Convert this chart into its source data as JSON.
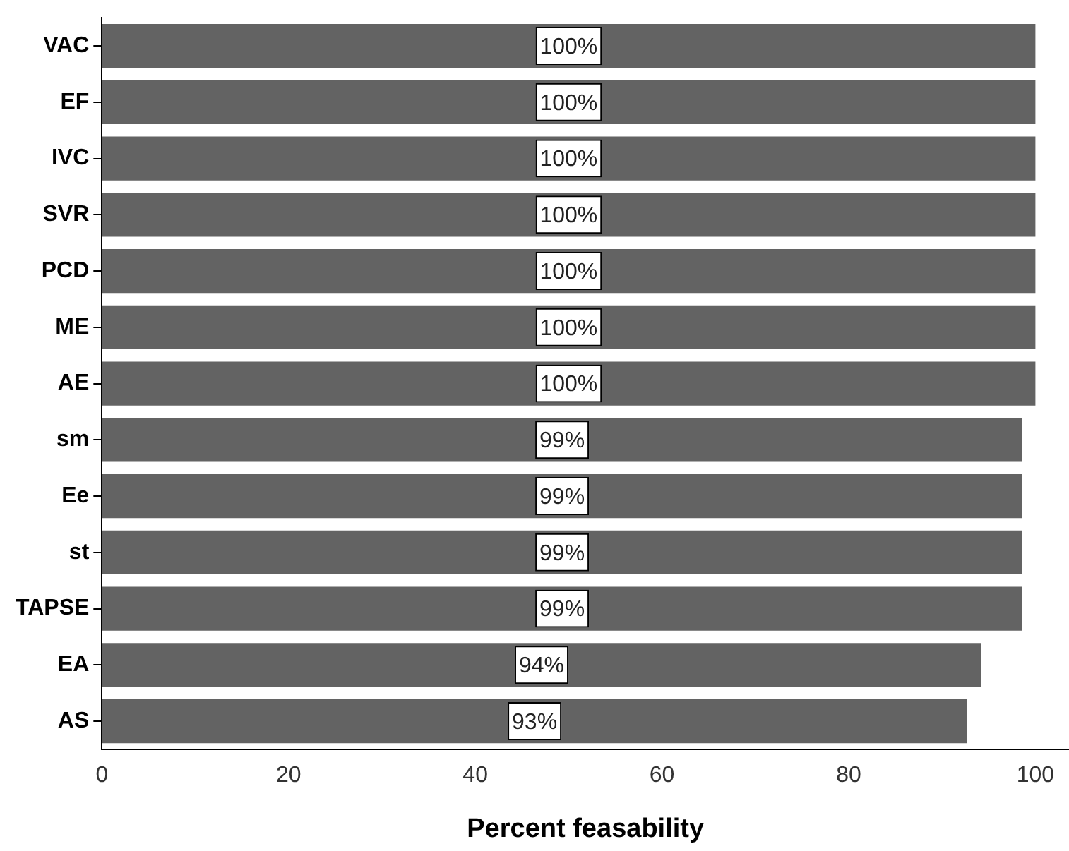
{
  "chart_data": {
    "type": "bar",
    "orientation": "horizontal",
    "xlabel": "Percent feasability",
    "categories": [
      "VAC",
      "EF",
      "IVC",
      "SVR",
      "PCD",
      "ME",
      "AE",
      "sm",
      "Ee",
      "st",
      "TAPSE",
      "EA",
      "AS"
    ],
    "values": [
      100,
      100,
      100,
      100,
      100,
      100,
      100,
      98.6,
      98.6,
      98.6,
      98.6,
      94.2,
      92.7
    ],
    "value_labels": [
      "100%",
      "100%",
      "100%",
      "100%",
      "100%",
      "100%",
      "100%",
      "99%",
      "99%",
      "99%",
      "99%",
      "94%",
      "93%"
    ],
    "color": "#636363",
    "xlim": [
      0,
      103.6
    ],
    "xticks": [
      0,
      20,
      40,
      60,
      80,
      100
    ],
    "grid": false,
    "legend": false
  }
}
